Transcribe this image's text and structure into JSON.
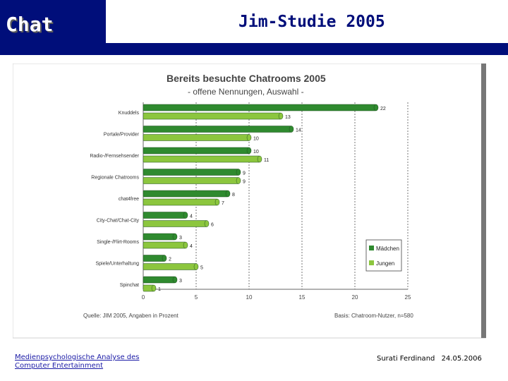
{
  "header": {
    "section_title": "Chat",
    "slide_title": "Jim-Studie 2005"
  },
  "footer": {
    "left_line1": "Medienpsychologische Analyse des",
    "left_line2": "Computer Entertainment",
    "author": "Surati Ferdinand",
    "date": "24.05.2006"
  },
  "colors": {
    "navy": "#000e7a",
    "madchen": "#2f8a2f",
    "jungen": "#8cc63e"
  },
  "chart_data": {
    "type": "bar",
    "orientation": "horizontal",
    "title": "Bereits besuchte Chatrooms 2005",
    "subtitle": "- offene Nennungen, Auswahl -",
    "categories": [
      "Knuddels",
      "Portale/Provider",
      "Radio-/Fernsehsender",
      "Regionale Chatrooms",
      "chat4free",
      "City-Chat/Chat-City",
      "Single-/Flirt-Rooms",
      "Spiele/Unterhaltung",
      "Spinchat"
    ],
    "series": [
      {
        "name": "Mädchen",
        "values": [
          22,
          14,
          10,
          9,
          8,
          4,
          3,
          2,
          3
        ]
      },
      {
        "name": "Jungen",
        "values": [
          13,
          10,
          11,
          9,
          7,
          6,
          4,
          5,
          1
        ]
      }
    ],
    "xlim": [
      0,
      25
    ],
    "xticks": [
      0,
      5,
      10,
      15,
      20,
      25
    ],
    "legend": "bottom-right",
    "source": "Quelle: JIM 2005, Angaben in Prozent",
    "basis": "Basis: Chatroom-Nutzer, n=580"
  }
}
